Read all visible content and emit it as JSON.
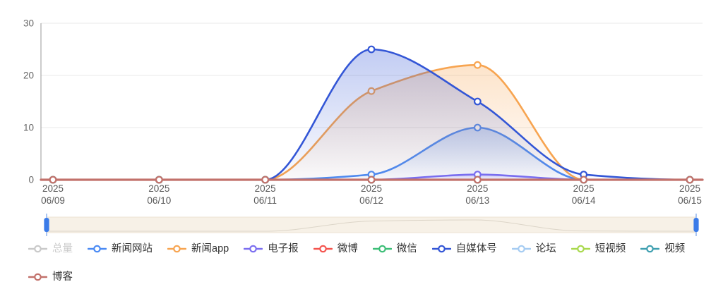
{
  "chart_data": {
    "type": "line",
    "title": "",
    "smooth": true,
    "grid": true,
    "legend_position": "bottom",
    "x_categories": [
      [
        "2025",
        "06/09"
      ],
      [
        "2025",
        "06/10"
      ],
      [
        "2025",
        "06/11"
      ],
      [
        "2025",
        "06/12"
      ],
      [
        "2025",
        "06/13"
      ],
      [
        "2025",
        "06/14"
      ],
      [
        "2025",
        "06/15"
      ]
    ],
    "ylim": [
      0,
      30
    ],
    "yticks": [
      0,
      10,
      20,
      30
    ],
    "series": [
      {
        "key": "total",
        "name": "总量",
        "color": "#c4c4c4",
        "selected": false,
        "values": null
      },
      {
        "key": "news-site",
        "name": "新闻网站",
        "color": "#4a8af4",
        "selected": true,
        "values": [
          0,
          0,
          0,
          1,
          10,
          0,
          0
        ]
      },
      {
        "key": "news-app",
        "name": "新闻app",
        "color": "#f7a450",
        "selected": true,
        "values": [
          0,
          0,
          0,
          17,
          22,
          0,
          0
        ]
      },
      {
        "key": "epaper",
        "name": "电子报",
        "color": "#7b6ef0",
        "selected": true,
        "values": [
          0,
          0,
          0,
          0,
          1,
          0,
          0
        ]
      },
      {
        "key": "weibo",
        "name": "微博",
        "color": "#f4544e",
        "selected": true,
        "values": [
          0,
          0,
          0,
          0,
          0,
          0,
          0
        ]
      },
      {
        "key": "wechat",
        "name": "微信",
        "color": "#3dbe77",
        "selected": true,
        "values": [
          0,
          0,
          0,
          0,
          0,
          0,
          0
        ]
      },
      {
        "key": "we-media",
        "name": "自媒体号",
        "color": "#3356d6",
        "selected": true,
        "values": [
          0,
          0,
          0,
          25,
          15,
          1,
          0
        ]
      },
      {
        "key": "forum",
        "name": "论坛",
        "color": "#a6ccf2",
        "selected": true,
        "values": [
          0,
          0,
          0,
          0,
          0,
          0,
          0
        ]
      },
      {
        "key": "short-video",
        "name": "短视频",
        "color": "#a9d94e",
        "selected": true,
        "values": [
          0,
          0,
          0,
          0,
          0,
          0,
          0
        ]
      },
      {
        "key": "video",
        "name": "视频",
        "color": "#3e9fb0",
        "selected": true,
        "values": [
          0,
          0,
          0,
          0,
          0,
          0,
          0
        ]
      },
      {
        "key": "blog",
        "name": "博客",
        "color": "#c2716b",
        "selected": true,
        "values": [
          0,
          0,
          0,
          0,
          0,
          0,
          0
        ]
      }
    ],
    "colors": {
      "grid_line": "#e8e8e8",
      "axis_line": "#999999",
      "x_label": "#595959",
      "y_label": "#666666",
      "unselected_legend": "#c9c9c9"
    },
    "datazoom": {
      "range_percent": [
        0,
        100
      ],
      "track_color": "#f7f1e7",
      "track_border": "#ece3d3",
      "handle_color": "#3b7be8",
      "shadow_color": "#dcd5c8"
    }
  }
}
